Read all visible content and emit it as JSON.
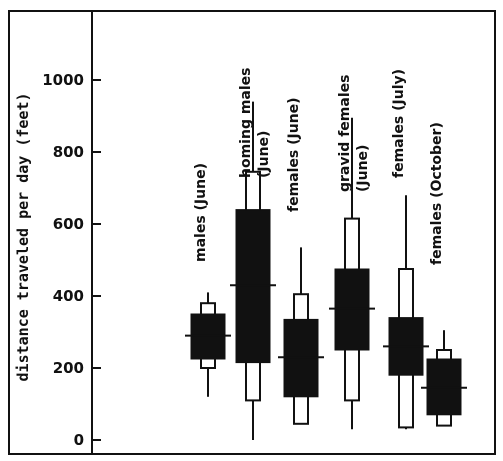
{
  "chart_data": {
    "type": "box",
    "ylabel": "distance traveled per day (feet)",
    "ylim": [
      0,
      1100
    ],
    "yticks": [
      0,
      200,
      400,
      600,
      800,
      1000
    ],
    "legend": null,
    "series": [
      {
        "label_lines": [
          "males (June)"
        ],
        "whisker_low": 120,
        "whisker_high": 410,
        "outer_low": 200,
        "outer_high": 380,
        "inner_low": 225,
        "inner_high": 350,
        "mean": 290
      },
      {
        "label_lines": [
          "homing males",
          "(June)"
        ],
        "whisker_low": 0,
        "whisker_high": 940,
        "outer_low": 110,
        "outer_high": 745,
        "inner_low": 215,
        "inner_high": 640,
        "mean": 430
      },
      {
        "label_lines": [
          "females (June)"
        ],
        "whisker_low": 45,
        "whisker_high": 535,
        "outer_low": 45,
        "outer_high": 405,
        "inner_low": 120,
        "inner_high": 335,
        "mean": 230
      },
      {
        "label_lines": [
          "gravid  females",
          "(June)"
        ],
        "whisker_low": 30,
        "whisker_high": 895,
        "outer_low": 110,
        "outer_high": 615,
        "inner_low": 250,
        "inner_high": 475,
        "mean": 365
      },
      {
        "label_lines": [
          "females  (July)"
        ],
        "whisker_low": 30,
        "whisker_high": 680,
        "outer_low": 35,
        "outer_high": 475,
        "inner_low": 180,
        "inner_high": 340,
        "mean": 260
      },
      {
        "label_lines": [
          "females  (October)"
        ],
        "whisker_low": 40,
        "whisker_high": 305,
        "outer_low": 40,
        "outer_high": 250,
        "inner_low": 70,
        "inner_high": 225,
        "mean": 145
      }
    ]
  }
}
